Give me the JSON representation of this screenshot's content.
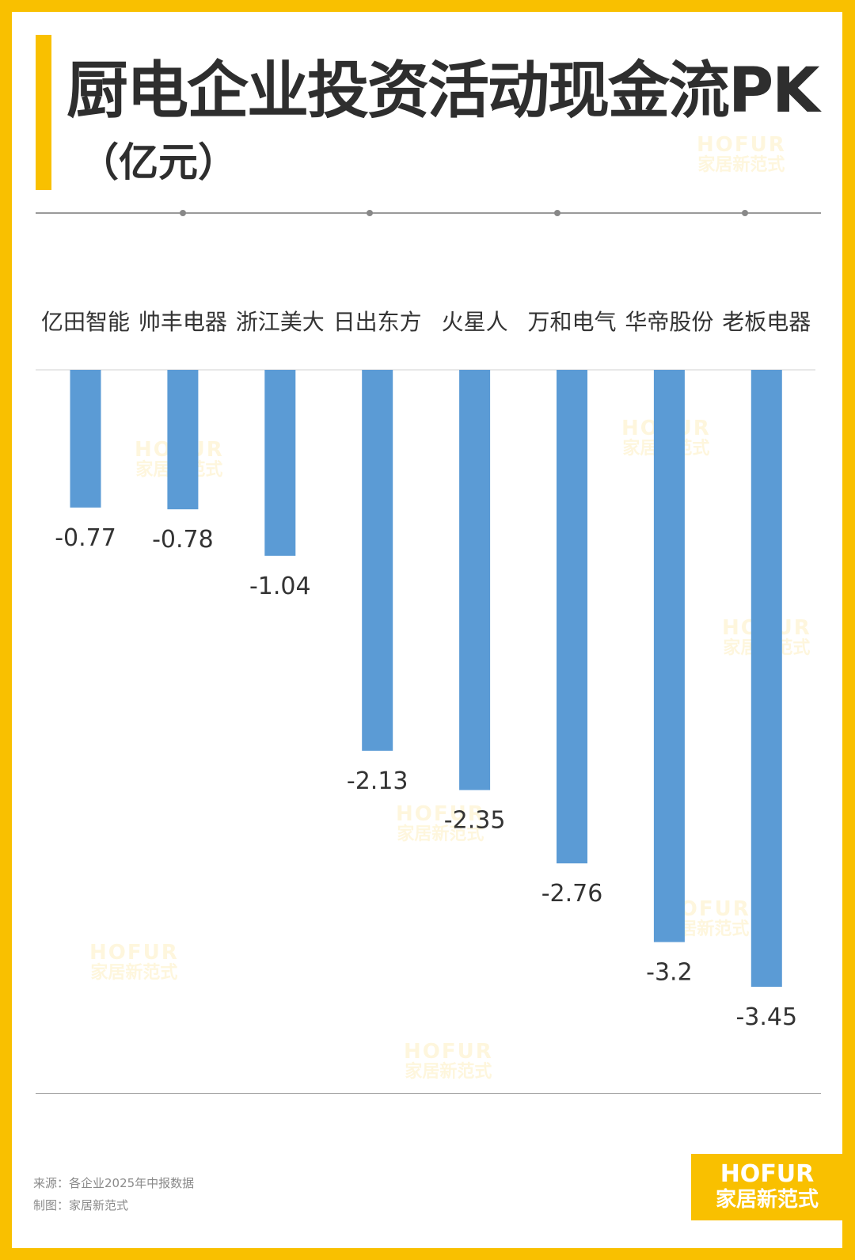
{
  "title": "厨电企业投资活动现金流PK",
  "unit": "（亿元）",
  "watermark": {
    "line1": "HOFUR",
    "line2": "家居新范式"
  },
  "footer": {
    "source": "来源：各企业2025年中报数据",
    "maker": "制图：家居新范式"
  },
  "colors": {
    "frame": "#F9C000",
    "bar": "#5B9BD5",
    "text": "#333333"
  },
  "chart_data": {
    "type": "bar",
    "orientation": "vertical",
    "categories": [
      "亿田智能",
      "帅丰电器",
      "浙江美大",
      "日出东方",
      "火星人",
      "万和电气",
      "华帝股份",
      "老板电器"
    ],
    "values": [
      -0.77,
      -0.78,
      -1.04,
      -2.13,
      -2.35,
      -2.76,
      -3.2,
      -3.45
    ],
    "value_labels": [
      "-0.77",
      "-0.78",
      "-1.04",
      "-2.13",
      "-2.35",
      "-2.76",
      "-3.2",
      "-3.45"
    ],
    "category_axis": "top",
    "ylim": [
      -3.45,
      0
    ],
    "grid": false,
    "legend": "none"
  }
}
